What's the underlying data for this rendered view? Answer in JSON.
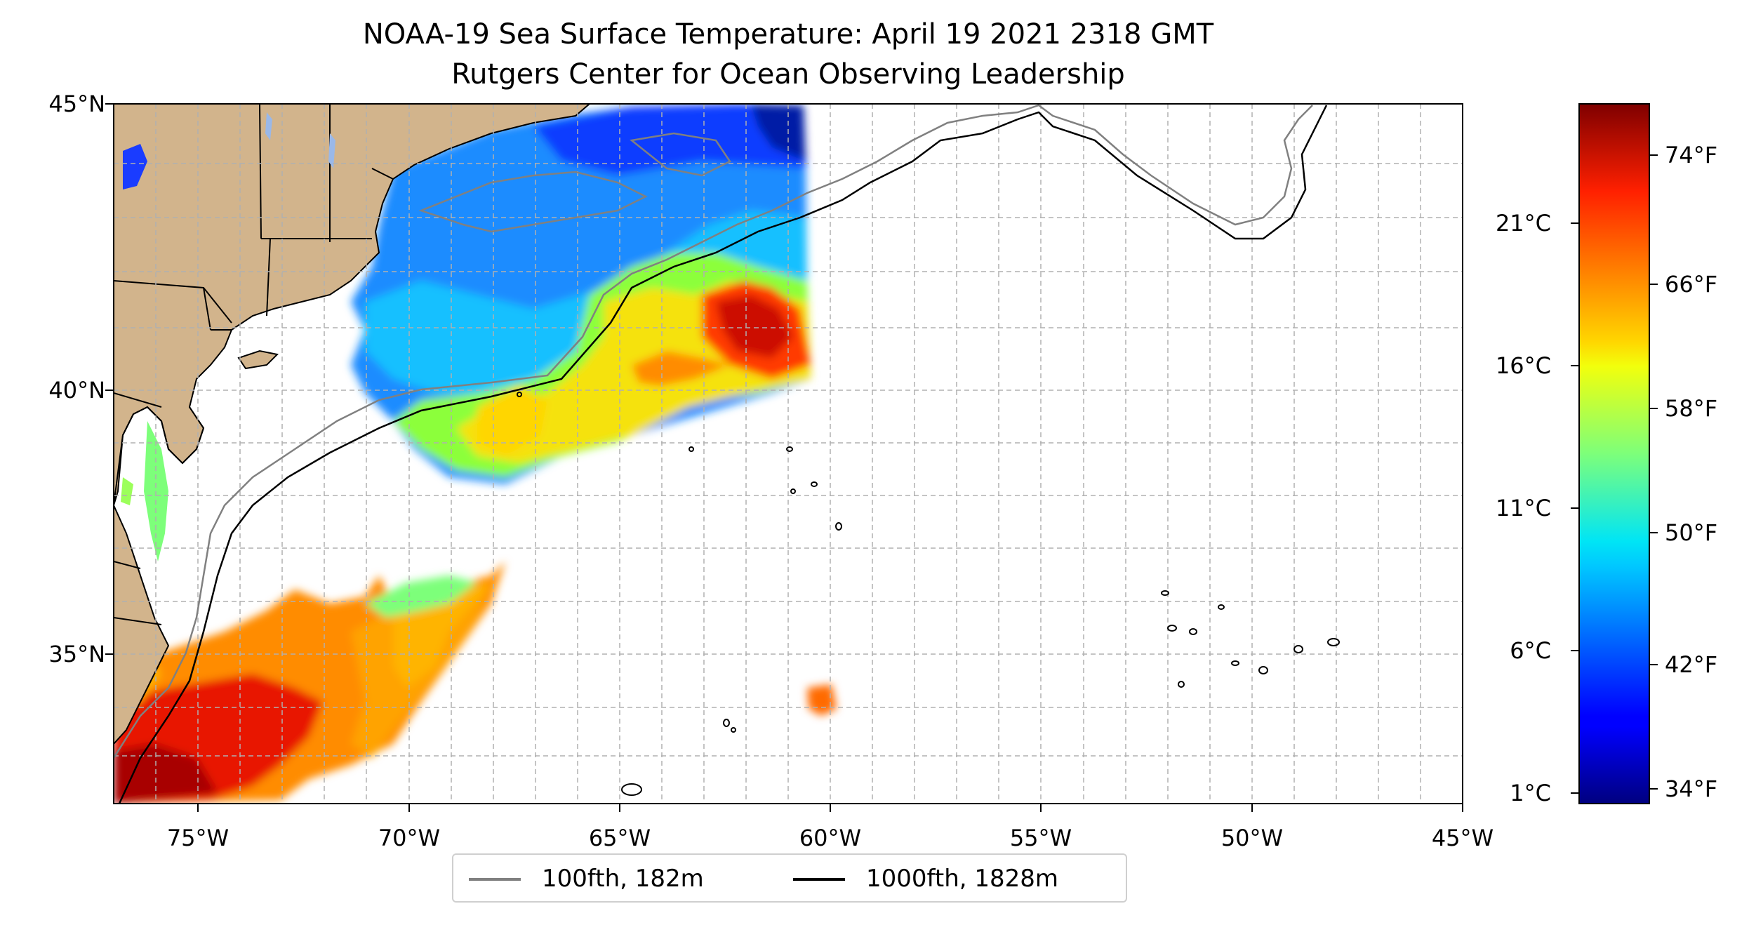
{
  "title": "NOAA-19 Sea Surface Temperature: April 19 2021 2318 GMT",
  "subtitle": "Rutgers Center for Ocean Observing Leadership",
  "map": {
    "lon_range": [
      -77,
      -45
    ],
    "lat_range": [
      32.5,
      45
    ],
    "lon_ticks": [
      {
        "value": -75,
        "label": "75°W"
      },
      {
        "value": -70,
        "label": "70°W"
      },
      {
        "value": -65,
        "label": "65°W"
      },
      {
        "value": -60,
        "label": "60°W"
      },
      {
        "value": -55,
        "label": "55°W"
      },
      {
        "value": -50,
        "label": "50°W"
      },
      {
        "value": -45,
        "label": "45°W"
      }
    ],
    "lat_ticks": [
      {
        "value": 45,
        "label": "45°N"
      },
      {
        "value": 40,
        "label": "40°N"
      },
      {
        "value": 35,
        "label": "35°N"
      }
    ],
    "gridlines": "dashed, every 1°",
    "land_color": "#d2b48c"
  },
  "colorbar": {
    "colormap": "jet",
    "range_f": [
      33,
      78
    ],
    "celsius_ticks": [
      {
        "value_c": 1,
        "label": "1°C"
      },
      {
        "value_c": 6,
        "label": "6°C"
      },
      {
        "value_c": 11,
        "label": "11°C"
      },
      {
        "value_c": 16,
        "label": "16°C"
      },
      {
        "value_c": 21,
        "label": "21°C"
      }
    ],
    "fahrenheit_ticks": [
      {
        "value_f": 34,
        "label": "34°F"
      },
      {
        "value_f": 42,
        "label": "42°F"
      },
      {
        "value_f": 50,
        "label": "50°F"
      },
      {
        "value_f": 58,
        "label": "58°F"
      },
      {
        "value_f": 66,
        "label": "66°F"
      },
      {
        "value_f": 74,
        "label": "74°F"
      }
    ]
  },
  "legend": {
    "placement": "bottom-center",
    "items": [
      {
        "label": "100fth, 182m",
        "color": "#808080"
      },
      {
        "label": "1000fth, 1828m",
        "color": "#000000"
      }
    ]
  }
}
